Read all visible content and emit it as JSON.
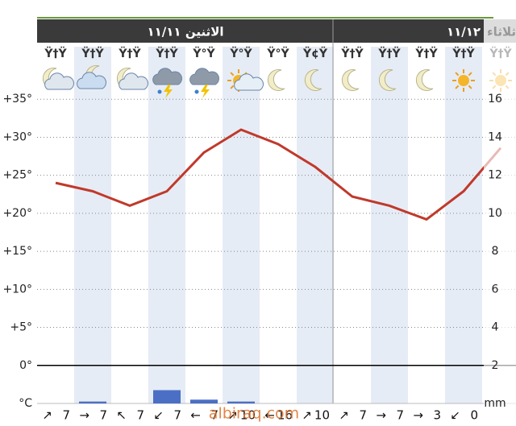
{
  "chart_data": {
    "type": "meteogram",
    "days": [
      {
        "label": "الاثنين ١١/١١"
      },
      {
        "label": "١١/١٢"
      },
      {
        "label": "ثلاثاء"
      }
    ],
    "categories": [
      "Ÿ†Ÿ",
      "Ÿ†Ÿ",
      "Ÿ†Ÿ",
      "Ÿ†Ÿ",
      "Ÿ°Ÿ",
      "Ÿ°Ÿ",
      "Ÿ°Ÿ",
      "Ÿ¢Ÿ",
      "Ÿ†Ÿ",
      "Ÿ†Ÿ",
      "Ÿ†Ÿ",
      "Ÿ†Ÿ",
      "Ÿ†Ÿ"
    ],
    "temperature": {
      "color": "#c0392b",
      "values": [
        24.0,
        22.9,
        21.0,
        22.9,
        28.0,
        31.0,
        29.1,
        26.1,
        22.2,
        21.0,
        19.2,
        22.9,
        28.6
      ]
    },
    "precipitation": {
      "color": "#4a6fc4",
      "axis": "y2",
      "values": [
        0,
        0.1,
        0,
        0.7,
        0.2,
        0.1,
        0,
        0,
        0,
        0,
        0,
        0,
        0
      ]
    },
    "wind": {
      "arrows": [
        "↗",
        "→",
        "↖",
        "↙",
        "←",
        "↗",
        "←",
        "↗",
        "↗",
        "→",
        "→",
        "↙"
      ],
      "speeds": [
        7,
        7,
        7,
        7,
        7,
        10,
        16,
        10,
        7,
        7,
        3,
        0
      ]
    },
    "ylim": [
      -5,
      36.4
    ],
    "yticks": [
      {
        "value": 35,
        "label": "+35°"
      },
      {
        "value": 30,
        "label": "+30°"
      },
      {
        "value": 25,
        "label": "+25°"
      },
      {
        "value": 20,
        "label": "+20°"
      },
      {
        "value": 15,
        "label": "+15°"
      },
      {
        "value": 10,
        "label": "+10°"
      },
      {
        "value": 5,
        "label": "+5°"
      },
      {
        "value": 0,
        "label": "0°"
      }
    ],
    "y_unit": "°C",
    "y2lim": [
      0,
      16.56
    ],
    "y2ticks": [
      16,
      14,
      12,
      10,
      8,
      6,
      4,
      2
    ],
    "y2_unit": "mm",
    "watermark": "albiraq.com",
    "grid": true
  }
}
